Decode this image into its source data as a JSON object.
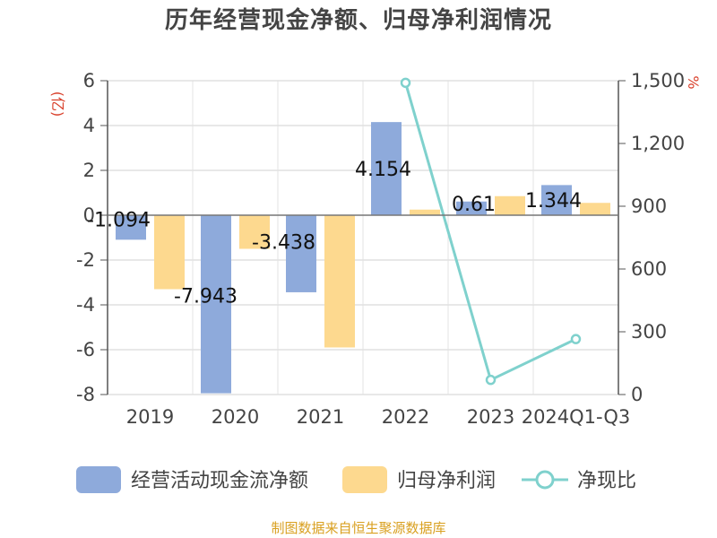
{
  "chart_data": {
    "type": "bar",
    "title": "历年经营现金净额、归母净利润情况",
    "categories": [
      "2019",
      "2020",
      "2021",
      "2022",
      "2023",
      "2024Q1-Q3"
    ],
    "series": [
      {
        "name": "经营活动现金流净额",
        "type": "bar",
        "axis": "left",
        "values": [
          -1.094,
          -7.943,
          -3.438,
          4.154,
          0.61,
          1.344
        ],
        "labels": [
          "-1.094",
          "-7.943",
          "-3.438",
          "4.154",
          "0.61",
          "1.344"
        ],
        "color": "#8eaadb"
      },
      {
        "name": "归母净利润",
        "type": "bar",
        "axis": "left",
        "values": [
          -3.3,
          -1.5,
          -5.9,
          0.25,
          0.85,
          0.55
        ],
        "color": "#fdd98f"
      },
      {
        "name": "净现比",
        "type": "line",
        "axis": "right",
        "values": [
          null,
          null,
          null,
          1490,
          70,
          265
        ],
        "color": "#7fd1cd"
      }
    ],
    "y_left": {
      "unit": "(亿)",
      "ylim": [
        -8,
        6
      ],
      "ticks": [
        6,
        4,
        2,
        0,
        -2,
        -4,
        -6,
        -8
      ]
    },
    "y_right": {
      "unit": "%",
      "ylim": [
        0,
        1500
      ],
      "ticks": [
        "1,500",
        "1,200",
        "900",
        "600",
        "300",
        "0"
      ]
    },
    "legend_position": "bottom",
    "grid": true
  },
  "source_note": "制图数据来自恒生聚源数据库"
}
